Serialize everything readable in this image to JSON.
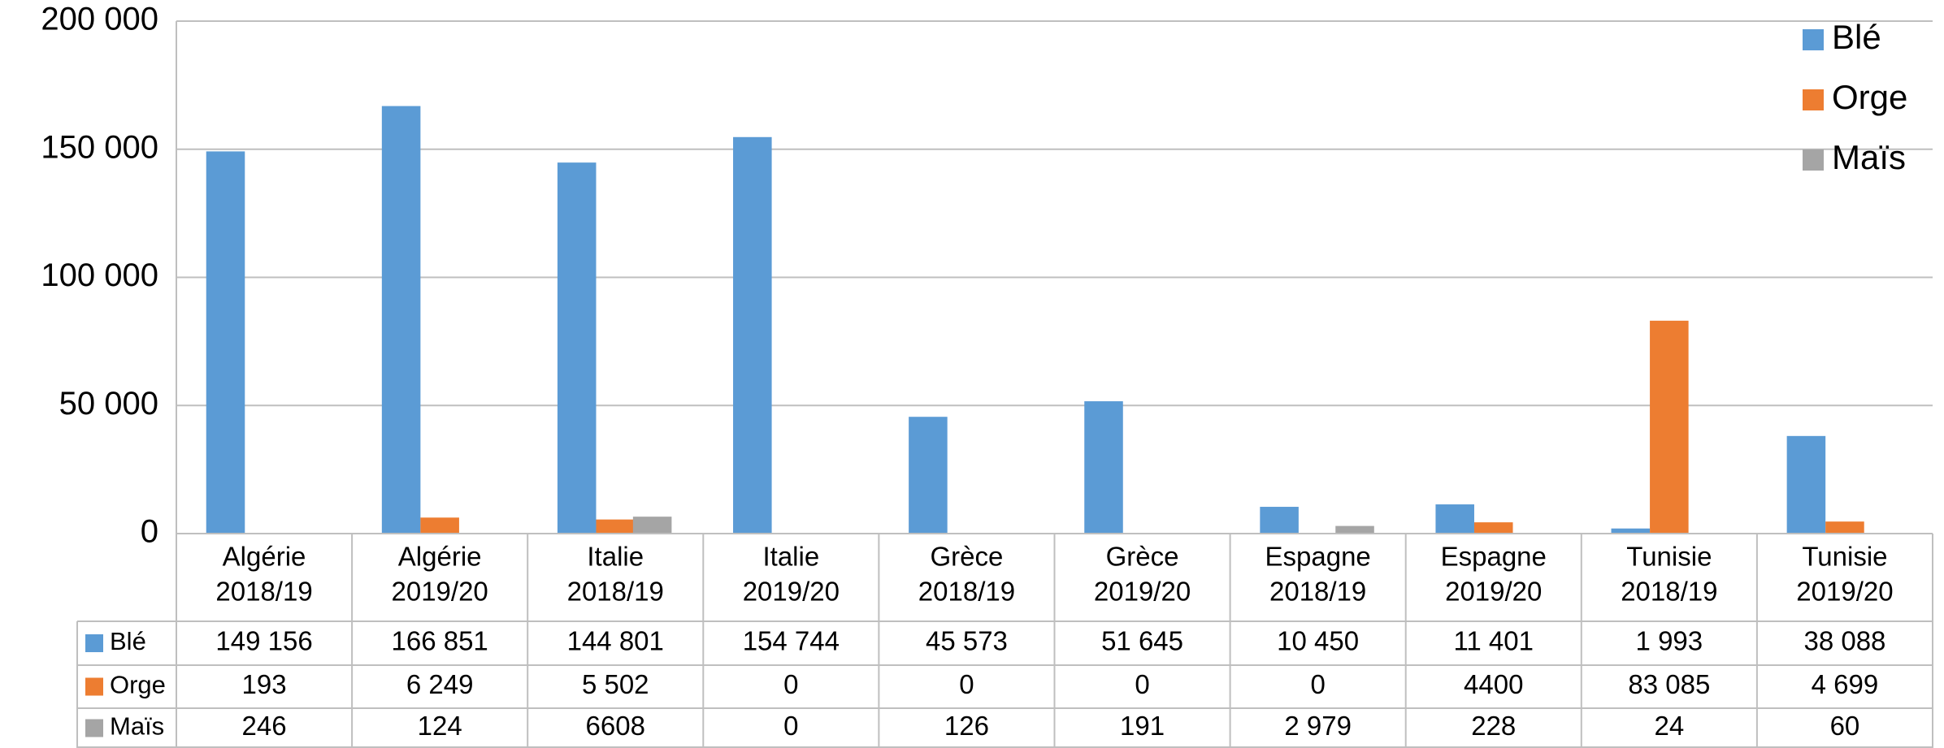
{
  "chart_data": {
    "type": "bar",
    "categories": [
      [
        "Algérie",
        "2018/19"
      ],
      [
        "Algérie",
        "2019/20"
      ],
      [
        "Italie",
        "2018/19"
      ],
      [
        "Italie",
        "2019/20"
      ],
      [
        "Grèce",
        "2018/19"
      ],
      [
        "Grèce",
        "2019/20"
      ],
      [
        "Espagne",
        "2018/19"
      ],
      [
        "Espagne",
        "2019/20"
      ],
      [
        "Tunisie",
        "2018/19"
      ],
      [
        "Tunisie",
        "2019/20"
      ]
    ],
    "series": [
      {
        "name": "Blé",
        "color": "#5b9bd5",
        "values": [
          149156,
          166851,
          144801,
          154744,
          45573,
          51645,
          10450,
          11401,
          1993,
          38088
        ],
        "value_labels": [
          "149 156",
          "166 851",
          "144 801",
          "154 744",
          "45 573",
          "51 645",
          "10 450",
          "11 401",
          "1 993",
          "38 088"
        ]
      },
      {
        "name": "Orge",
        "color": "#ed7d31",
        "values": [
          193,
          6249,
          5502,
          0,
          0,
          0,
          0,
          4400,
          83085,
          4699
        ],
        "value_labels": [
          "193",
          "6 249",
          "5 502",
          "0",
          "0",
          "0",
          "0",
          "4400",
          "83 085",
          "4 699"
        ]
      },
      {
        "name": "Maïs",
        "color": "#a5a5a5",
        "values": [
          246,
          124,
          6608,
          0,
          126,
          191,
          2979,
          228,
          24,
          60
        ],
        "value_labels": [
          "246",
          "124",
          "6608",
          "0",
          "126",
          "191",
          "2 979",
          "228",
          "24",
          "60"
        ]
      }
    ],
    "ylim": [
      0,
      200000
    ],
    "yticks": [
      0,
      {
        "value": 50000,
        "label": "50 000"
      },
      {
        "value": 100000,
        "label": "100 000"
      },
      {
        "value": 150000,
        "label": "150 000"
      },
      {
        "value": 200000,
        "label": "200 000"
      }
    ],
    "grid": true,
    "legend": "top-right",
    "data_table": true
  }
}
